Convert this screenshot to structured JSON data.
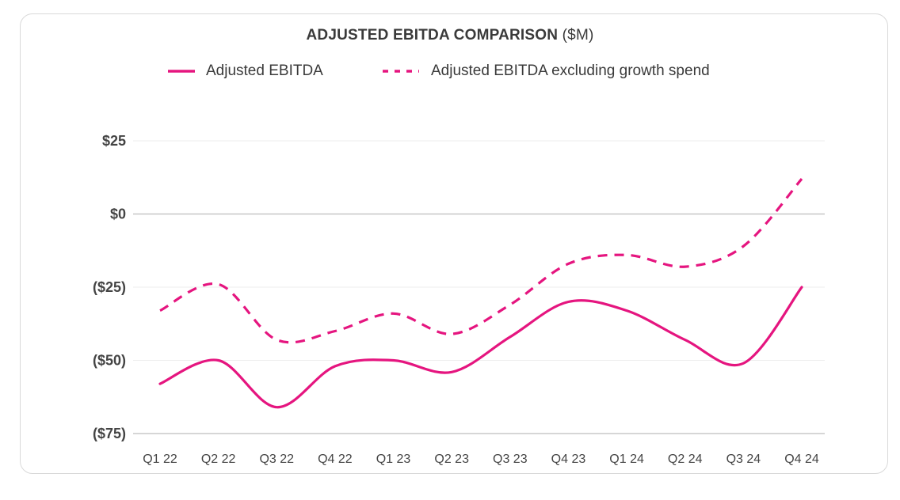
{
  "chart": {
    "title_main": "ADJUSTED EBITDA COMPARISON",
    "title_unit": " ($M)",
    "legend": [
      {
        "label": "Adjusted EBITDA"
      },
      {
        "label": "Adjusted EBITDA excluding growth spend"
      }
    ]
  },
  "colors": {
    "series": "#e5157f",
    "grid": "#eeeeee",
    "axis": "#bdbdbd",
    "text": "#444444"
  },
  "chart_data": {
    "type": "line",
    "title": "ADJUSTED EBITDA COMPARISON ($M)",
    "xlabel": "",
    "ylabel": "",
    "categories": [
      "Q1 22",
      "Q2 22",
      "Q3 22",
      "Q4 22",
      "Q1 23",
      "Q2 23",
      "Q3 23",
      "Q4 23",
      "Q1 24",
      "Q2 24",
      "Q3 24",
      "Q4 24"
    ],
    "series": [
      {
        "name": "Adjusted EBITDA",
        "style": "solid",
        "values": [
          -58,
          -50,
          -66,
          -52,
          -50,
          -54,
          -42,
          -30,
          -33,
          -43,
          -51,
          -25
        ]
      },
      {
        "name": "Adjusted EBITDA excluding growth spend",
        "style": "dashed",
        "values": [
          -33,
          -24,
          -43,
          -40,
          -34,
          -41,
          -31,
          -17,
          -14,
          -18,
          -11,
          12
        ]
      }
    ],
    "ylim": [
      -75,
      25
    ],
    "yticks": [
      25,
      0,
      -25,
      -50,
      -75
    ],
    "ytick_labels": [
      "$25",
      "$0",
      "($25)",
      "($50)",
      "($75)"
    ],
    "grid": true,
    "legend_position": "top-center"
  }
}
